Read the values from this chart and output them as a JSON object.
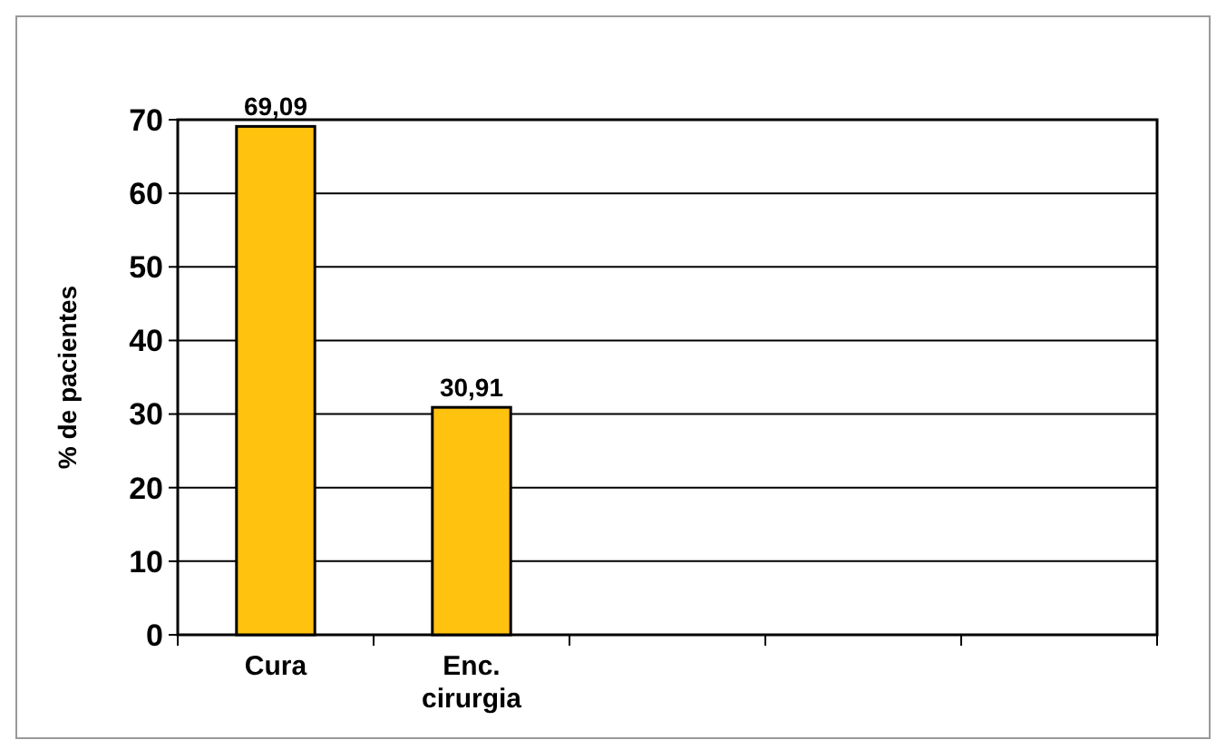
{
  "chart_data": {
    "type": "bar",
    "ylabel": "% de pacientes",
    "categories": [
      "Cura",
      "Enc. cirurgia",
      null,
      null,
      null
    ],
    "values": [
      69.09,
      30.91,
      null,
      null,
      null
    ],
    "value_labels": [
      "69,09",
      "30,91",
      null,
      null,
      null
    ],
    "color": "#ffc20e",
    "ylim": [
      0,
      70
    ],
    "yticks": [
      0,
      10,
      20,
      30,
      40,
      50,
      60,
      70
    ],
    "grid": "y"
  }
}
